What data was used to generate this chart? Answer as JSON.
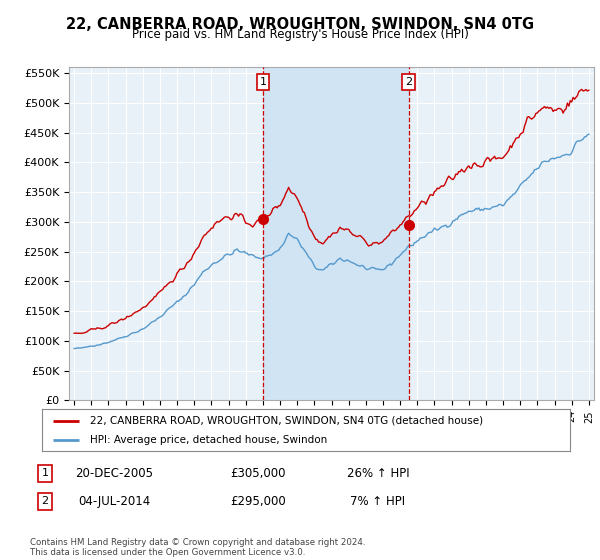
{
  "title": "22, CANBERRA ROAD, WROUGHTON, SWINDON, SN4 0TG",
  "subtitle": "Price paid vs. HM Land Registry's House Price Index (HPI)",
  "ylim": [
    0,
    560000
  ],
  "yticks": [
    0,
    50000,
    100000,
    150000,
    200000,
    250000,
    300000,
    350000,
    400000,
    450000,
    500000,
    550000
  ],
  "ytick_labels": [
    "£0",
    "£50K",
    "£100K",
    "£150K",
    "£200K",
    "£250K",
    "£300K",
    "£350K",
    "£400K",
    "£450K",
    "£500K",
    "£550K"
  ],
  "sale1_date_num": 2006.0,
  "sale1_price": 305000,
  "sale1_label": "1",
  "sale1_date_str": "20-DEC-2005",
  "sale1_pct": "26% ↑ HPI",
  "sale2_date_num": 2014.5,
  "sale2_price": 295000,
  "sale2_label": "2",
  "sale2_date_str": "04-JUL-2014",
  "sale2_pct": "7% ↑ HPI",
  "legend_line1": "22, CANBERRA ROAD, WROUGHTON, SWINDON, SN4 0TG (detached house)",
  "legend_line2": "HPI: Average price, detached house, Swindon",
  "footer": "Contains HM Land Registry data © Crown copyright and database right 2024.\nThis data is licensed under the Open Government Licence v3.0.",
  "line_color_red": "#cc0000",
  "line_color_blue": "#5599cc",
  "background_color": "#e8f0f8",
  "shade_color": "#d0e4f4",
  "xlim_left": 1994.7,
  "xlim_right": 2025.3
}
